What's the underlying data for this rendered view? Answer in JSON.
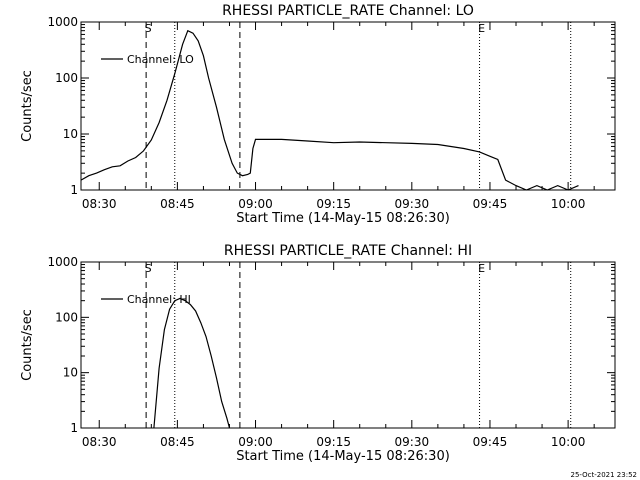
{
  "chart_data": [
    {
      "type": "line",
      "title": "RHESSI PARTICLE_RATE Channel: LO",
      "xlabel": "Start Time (14-May-15 08:26:30)",
      "ylabel": "Counts/sec",
      "x_tick_labels": [
        "08:30",
        "08:45",
        "09:00",
        "09:15",
        "09:30",
        "09:45",
        "10:00"
      ],
      "y_tick_labels": [
        "1",
        "10",
        "100",
        "1000"
      ],
      "xlim": [
        "08:26:30",
        "10:09:00"
      ],
      "ylim": [
        1,
        1000
      ],
      "y_scale": "log",
      "grid": false,
      "legend_position": "top-left",
      "series": [
        {
          "name": "Channel: LO",
          "x": [
            "08:26:30",
            "08:28:00",
            "08:29:30",
            "08:31:00",
            "08:32:30",
            "08:34:00",
            "08:35:30",
            "08:37:00",
            "08:38:30",
            "08:40:00",
            "08:41:30",
            "08:43:00",
            "08:44:30",
            "08:46:00",
            "08:47:00",
            "08:48:00",
            "08:49:00",
            "08:50:00",
            "08:51:00",
            "08:52:30",
            "08:54:00",
            "08:55:30",
            "08:56:30",
            "08:57:30",
            "08:58:30",
            "08:59:00",
            "08:59:30",
            "09:00:00",
            "09:05:00",
            "09:10:00",
            "09:15:00",
            "09:20:00",
            "09:25:00",
            "09:30:00",
            "09:35:00",
            "09:40:00",
            "09:43:00",
            "09:45:00",
            "09:46:30",
            "09:48:00",
            "09:50:00",
            "09:52:00",
            "09:54:00",
            "09:56:00",
            "09:58:00",
            "10:00:00",
            "10:02:00"
          ],
          "y": [
            1.5,
            1.8,
            2.0,
            2.3,
            2.6,
            2.7,
            3.3,
            3.8,
            5.0,
            7.8,
            16,
            40,
            120,
            400,
            700,
            630,
            460,
            250,
            100,
            30,
            8,
            3,
            2.0,
            1.8,
            1.9,
            2.0,
            5.5,
            8.0,
            8.0,
            7.5,
            7.0,
            7.2,
            7.0,
            6.8,
            6.5,
            5.5,
            4.8,
            4.0,
            3.5,
            1.5,
            1.2,
            1.0,
            1.2,
            1.0,
            1.2,
            1.0,
            1.2
          ]
        }
      ],
      "annotations": [
        {
          "text": "S",
          "x": "08:39:00"
        },
        {
          "text": "E",
          "x": "09:43:00"
        }
      ],
      "vertical_lines": [
        {
          "style": "dashed",
          "x": "08:39:00"
        },
        {
          "style": "dotted",
          "x": "08:44:30"
        },
        {
          "style": "dashed",
          "x": "08:57:00"
        },
        {
          "style": "dotted",
          "x": "09:43:00"
        },
        {
          "style": "dotted",
          "x": "10:00:30"
        }
      ]
    },
    {
      "type": "line",
      "title": "RHESSI PARTICLE_RATE Channel: HI",
      "xlabel": "Start Time (14-May-15 08:26:30)",
      "ylabel": "Counts/sec",
      "x_tick_labels": [
        "08:30",
        "08:45",
        "09:00",
        "09:15",
        "09:30",
        "09:45",
        "10:00"
      ],
      "y_tick_labels": [
        "1",
        "10",
        "100",
        "1000"
      ],
      "xlim": [
        "08:26:30",
        "10:09:00"
      ],
      "ylim": [
        1,
        1000
      ],
      "y_scale": "log",
      "grid": false,
      "legend_position": "top-left",
      "series": [
        {
          "name": "Channel: HI",
          "x": [
            "08:40:30",
            "08:41:30",
            "08:42:30",
            "08:43:30",
            "08:44:30",
            "08:45:30",
            "08:46:30",
            "08:47:30",
            "08:48:30",
            "08:49:30",
            "08:50:30",
            "08:51:30",
            "08:52:30",
            "08:53:30",
            "08:54:30",
            "08:55:00"
          ],
          "y": [
            1,
            12,
            60,
            140,
            200,
            220,
            200,
            170,
            130,
            80,
            45,
            20,
            8,
            3,
            1.5,
            1
          ]
        }
      ],
      "annotations": [
        {
          "text": "S",
          "x": "08:39:00"
        },
        {
          "text": "E",
          "x": "09:43:00"
        }
      ],
      "vertical_lines": [
        {
          "style": "dashed",
          "x": "08:39:00"
        },
        {
          "style": "dotted",
          "x": "08:44:30"
        },
        {
          "style": "dashed",
          "x": "08:57:00"
        },
        {
          "style": "dotted",
          "x": "09:43:00"
        },
        {
          "style": "dotted",
          "x": "10:00:30"
        }
      ]
    }
  ],
  "footer": {
    "timestamp": "25-Oct-2021 23:52"
  }
}
